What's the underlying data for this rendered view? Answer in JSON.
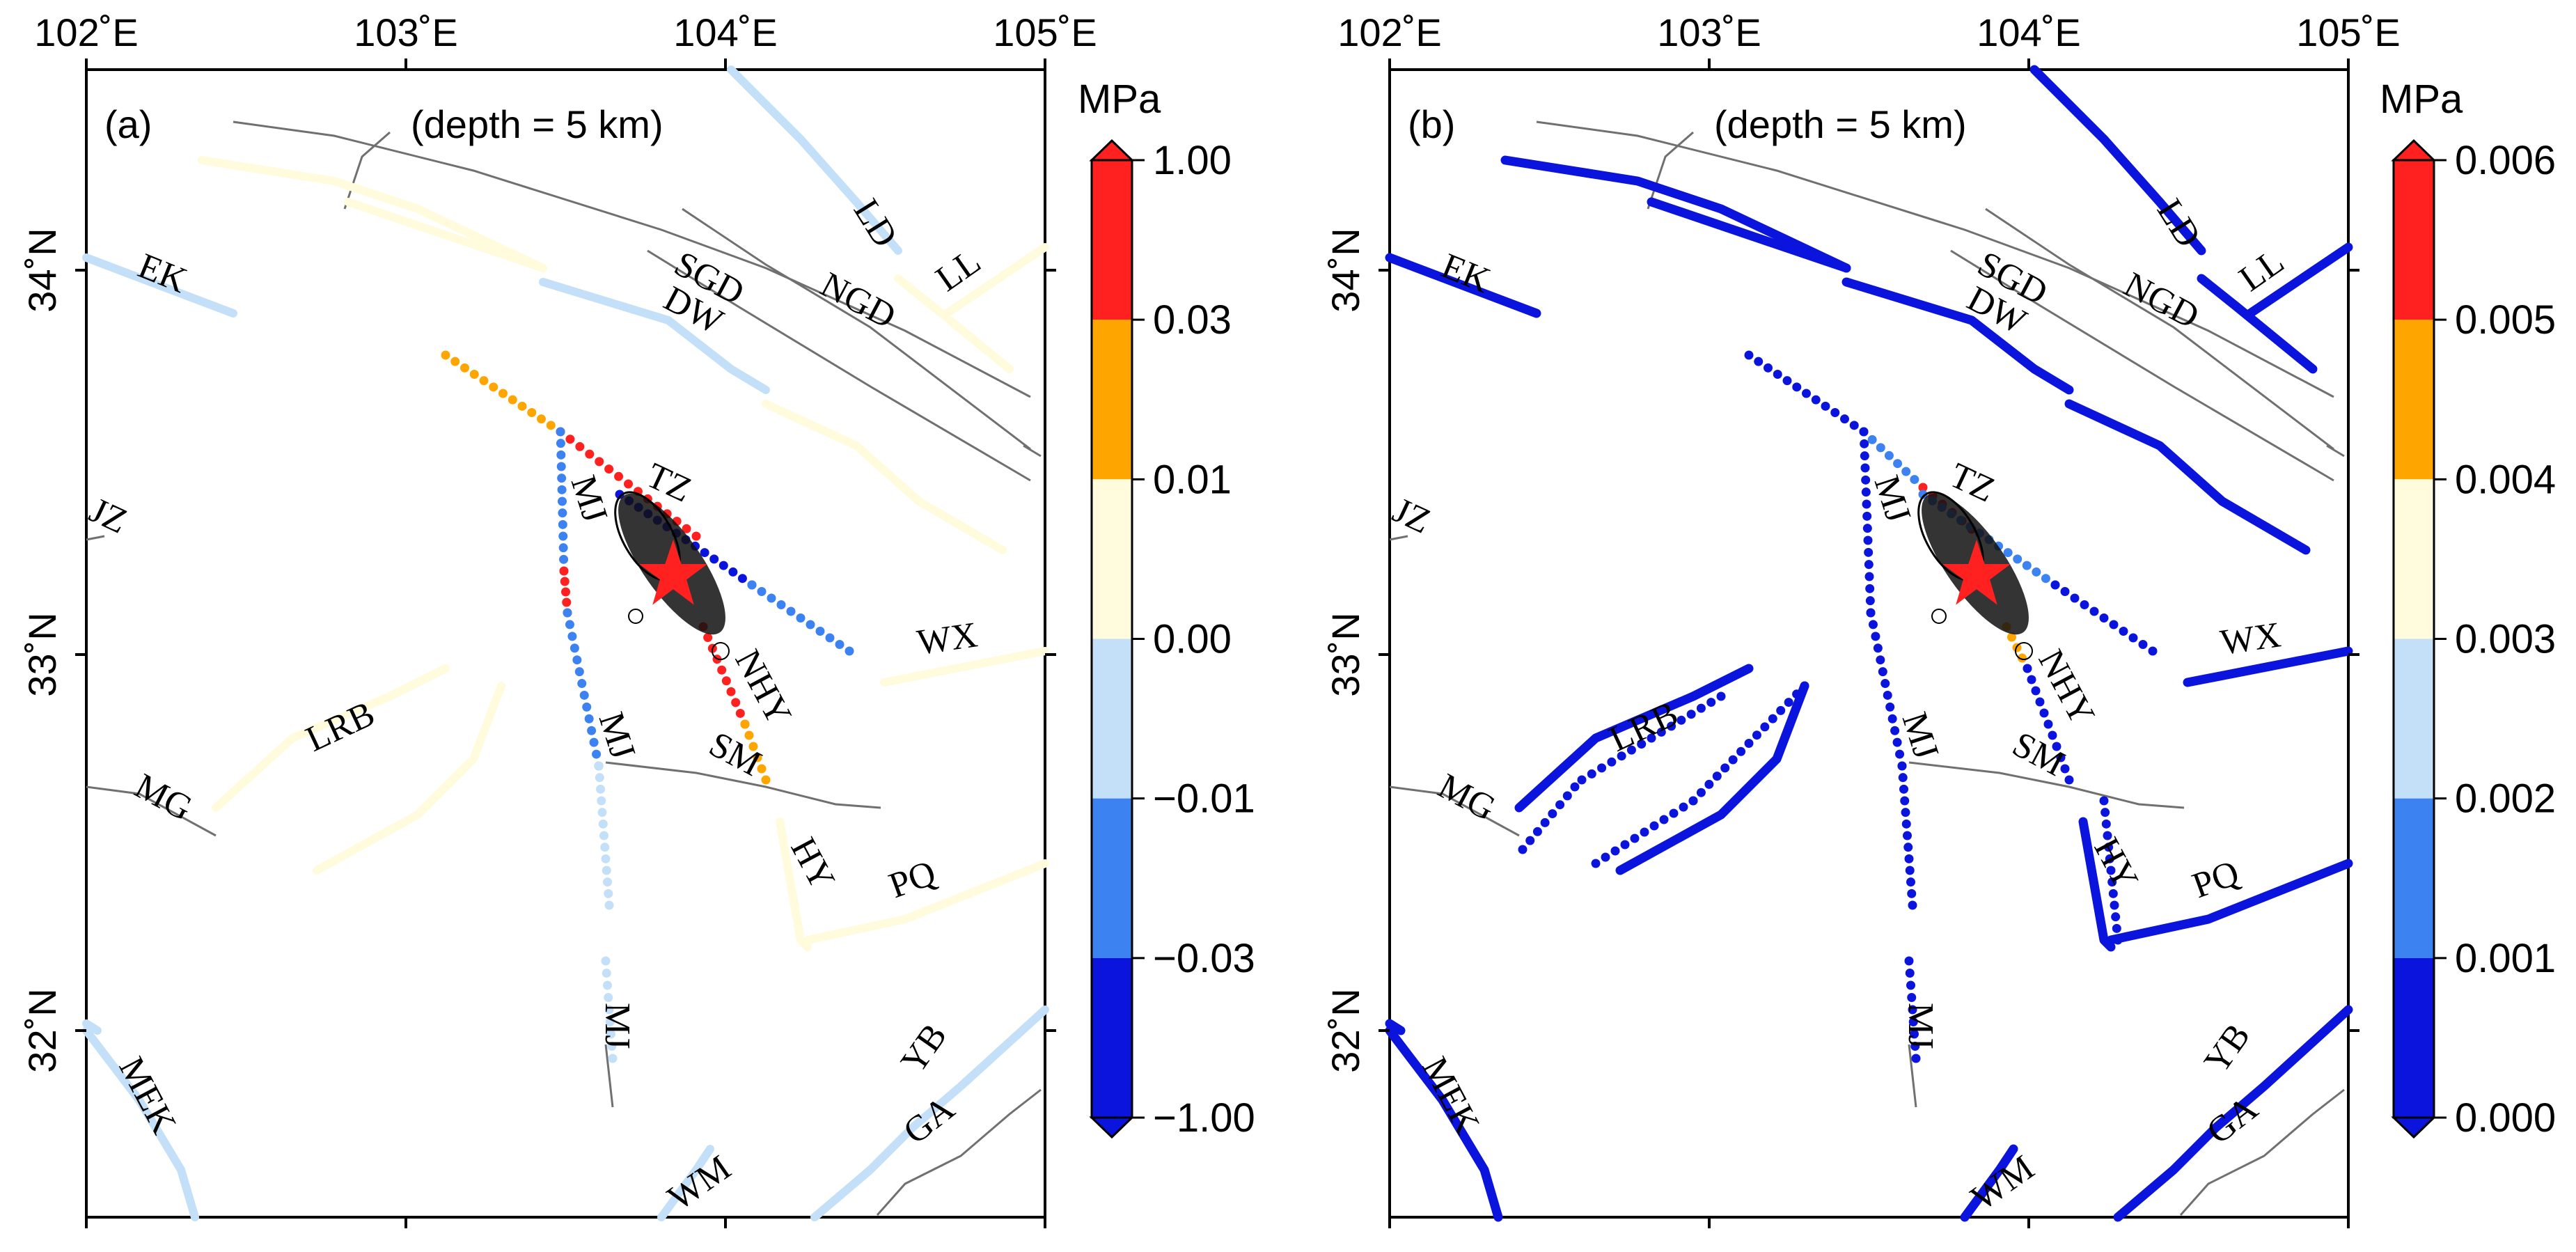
{
  "figure": {
    "panels": [
      {
        "id": "a",
        "label": "(a)",
        "depth_note": "(depth = 5 km)",
        "colorbar": {
          "unit": "MPa",
          "tick_labels": [
            "1.00",
            "0.03",
            "0.01",
            "0.00",
            "−0.01",
            "−0.03",
            "−1.00"
          ],
          "colors": [
            "#ff2020",
            "#ffa500",
            "#fffbdc",
            "#c4e0f8",
            "#3c82f0",
            "#0a14dc"
          ]
        }
      },
      {
        "id": "b",
        "label": "(b)",
        "depth_note": "(depth = 5 km)",
        "colorbar": {
          "unit": "MPa",
          "tick_labels": [
            "0.006",
            "0.005",
            "0.004",
            "0.003",
            "0.002",
            "0.001",
            "0.000"
          ],
          "colors": [
            "#ff2020",
            "#ffa500",
            "#fffbdc",
            "#c4e0f8",
            "#3c82f0",
            "#0a14dc"
          ]
        }
      }
    ],
    "axes": {
      "lon_ticks": [
        "102˚E",
        "103˚E",
        "104˚E",
        "105˚E"
      ],
      "lat_ticks": [
        "34˚N",
        "33˚N",
        "32˚N"
      ]
    },
    "fault_labels": [
      "EK",
      "LD",
      "LL",
      "SGD",
      "DW",
      "NGD",
      "JZ",
      "TZ",
      "MJ",
      "WX",
      "NHY",
      "LRB",
      "SM",
      "MG",
      "HY",
      "PQ",
      "YB",
      "MEK",
      "GA",
      "WM"
    ],
    "epicenter_symbol": "red-star"
  }
}
